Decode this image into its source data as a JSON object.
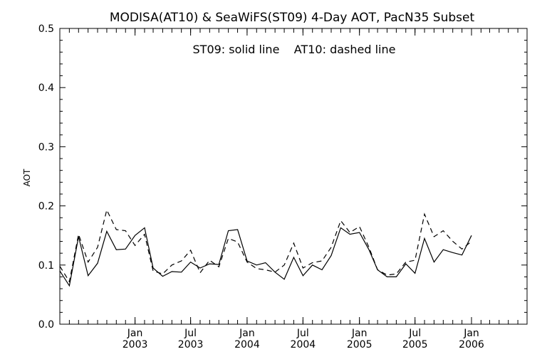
{
  "chart_data": {
    "type": "line",
    "title": "MODISA(AT10) & SeaWiFS(ST09) 4-Day AOT, PacN35 Subset",
    "annotation": "ST09: solid line    AT10: dashed line",
    "ylabel": "AOT",
    "xlabel": "",
    "ylim": [
      0.0,
      0.5
    ],
    "xlim": [
      "2002-05-01",
      "2006-07-01"
    ],
    "yticks": [
      "0.0",
      "0.1",
      "0.2",
      "0.3",
      "0.4",
      "0.5"
    ],
    "xticks": [
      {
        "date": "2003-01-01",
        "label1": "Jan",
        "label2": "2003"
      },
      {
        "date": "2003-07-01",
        "label1": "Jul",
        "label2": "2003"
      },
      {
        "date": "2004-01-01",
        "label1": "Jan",
        "label2": "2004"
      },
      {
        "date": "2004-07-01",
        "label1": "Jul",
        "label2": "2004"
      },
      {
        "date": "2005-01-01",
        "label1": "Jan",
        "label2": "2005"
      },
      {
        "date": "2005-07-01",
        "label1": "Jul",
        "label2": "2005"
      },
      {
        "date": "2006-01-01",
        "label1": "Jan",
        "label2": "2006"
      }
    ],
    "grid": false,
    "series": [
      {
        "name": "ST09",
        "style": "solid",
        "color": "#000000",
        "points": [
          [
            "2002-05-01",
            0.09
          ],
          [
            "2002-06-01",
            0.065
          ],
          [
            "2002-07-01",
            0.148
          ],
          [
            "2002-08-01",
            0.082
          ],
          [
            "2002-09-01",
            0.103
          ],
          [
            "2002-10-01",
            0.157
          ],
          [
            "2002-11-01",
            0.126
          ],
          [
            "2002-12-01",
            0.127
          ],
          [
            "2003-01-01",
            0.15
          ],
          [
            "2003-02-01",
            0.163
          ],
          [
            "2003-03-01",
            0.095
          ],
          [
            "2003-04-01",
            0.081
          ],
          [
            "2003-05-01",
            0.089
          ],
          [
            "2003-06-01",
            0.088
          ],
          [
            "2003-07-01",
            0.105
          ],
          [
            "2003-08-01",
            0.095
          ],
          [
            "2003-09-01",
            0.102
          ],
          [
            "2003-10-01",
            0.101
          ],
          [
            "2003-11-01",
            0.158
          ],
          [
            "2003-12-01",
            0.16
          ],
          [
            "2004-01-01",
            0.107
          ],
          [
            "2004-02-01",
            0.1
          ],
          [
            "2004-03-01",
            0.104
          ],
          [
            "2004-04-01",
            0.088
          ],
          [
            "2004-05-01",
            0.076
          ],
          [
            "2004-06-01",
            0.113
          ],
          [
            "2004-07-01",
            0.082
          ],
          [
            "2004-08-01",
            0.1
          ],
          [
            "2004-09-01",
            0.092
          ],
          [
            "2004-10-01",
            0.116
          ],
          [
            "2004-11-01",
            0.163
          ],
          [
            "2004-12-01",
            0.152
          ],
          [
            "2005-01-01",
            0.155
          ],
          [
            "2005-02-01",
            0.126
          ],
          [
            "2005-03-01",
            0.092
          ],
          [
            "2005-04-01",
            0.08
          ],
          [
            "2005-05-01",
            0.08
          ],
          [
            "2005-06-01",
            0.102
          ],
          [
            "2005-07-01",
            0.086
          ],
          [
            "2005-08-01",
            0.145
          ],
          [
            "2005-09-01",
            0.105
          ],
          [
            "2005-10-01",
            0.126
          ],
          [
            "2005-11-01",
            0.121
          ],
          [
            "2005-12-01",
            0.117
          ],
          [
            "2006-01-01",
            0.15
          ]
        ]
      },
      {
        "name": "AT10",
        "style": "dashed",
        "color": "#000000",
        "points": [
          [
            "2002-05-01",
            0.098
          ],
          [
            "2002-06-01",
            0.072
          ],
          [
            "2002-07-01",
            0.152
          ],
          [
            "2002-08-01",
            0.105
          ],
          [
            "2002-09-01",
            0.13
          ],
          [
            "2002-10-01",
            0.193
          ],
          [
            "2002-11-01",
            0.16
          ],
          [
            "2002-12-01",
            0.158
          ],
          [
            "2003-01-01",
            0.133
          ],
          [
            "2003-02-01",
            0.152
          ],
          [
            "2003-03-01",
            0.09
          ],
          [
            "2003-04-01",
            0.085
          ],
          [
            "2003-05-01",
            0.1
          ],
          [
            "2003-06-01",
            0.107
          ],
          [
            "2003-07-01",
            0.125
          ],
          [
            "2003-08-01",
            0.087
          ],
          [
            "2003-09-01",
            0.108
          ],
          [
            "2003-10-01",
            0.097
          ],
          [
            "2003-11-01",
            0.145
          ],
          [
            "2003-12-01",
            0.139
          ],
          [
            "2004-01-01",
            0.105
          ],
          [
            "2004-02-01",
            0.094
          ],
          [
            "2004-03-01",
            0.092
          ],
          [
            "2004-04-01",
            0.088
          ],
          [
            "2004-05-01",
            0.1
          ],
          [
            "2004-06-01",
            0.137
          ],
          [
            "2004-07-01",
            0.095
          ],
          [
            "2004-08-01",
            0.104
          ],
          [
            "2004-09-01",
            0.107
          ],
          [
            "2004-10-01",
            0.13
          ],
          [
            "2004-11-01",
            0.175
          ],
          [
            "2004-12-01",
            0.155
          ],
          [
            "2005-01-01",
            0.165
          ],
          [
            "2005-02-01",
            0.13
          ],
          [
            "2005-03-01",
            0.092
          ],
          [
            "2005-04-01",
            0.083
          ],
          [
            "2005-05-01",
            0.085
          ],
          [
            "2005-06-01",
            0.105
          ],
          [
            "2005-07-01",
            0.108
          ],
          [
            "2005-08-01",
            0.186
          ],
          [
            "2005-09-01",
            0.148
          ],
          [
            "2005-10-01",
            0.158
          ],
          [
            "2005-11-01",
            0.14
          ],
          [
            "2005-12-01",
            0.127
          ],
          [
            "2006-01-01",
            0.14
          ]
        ]
      }
    ]
  }
}
